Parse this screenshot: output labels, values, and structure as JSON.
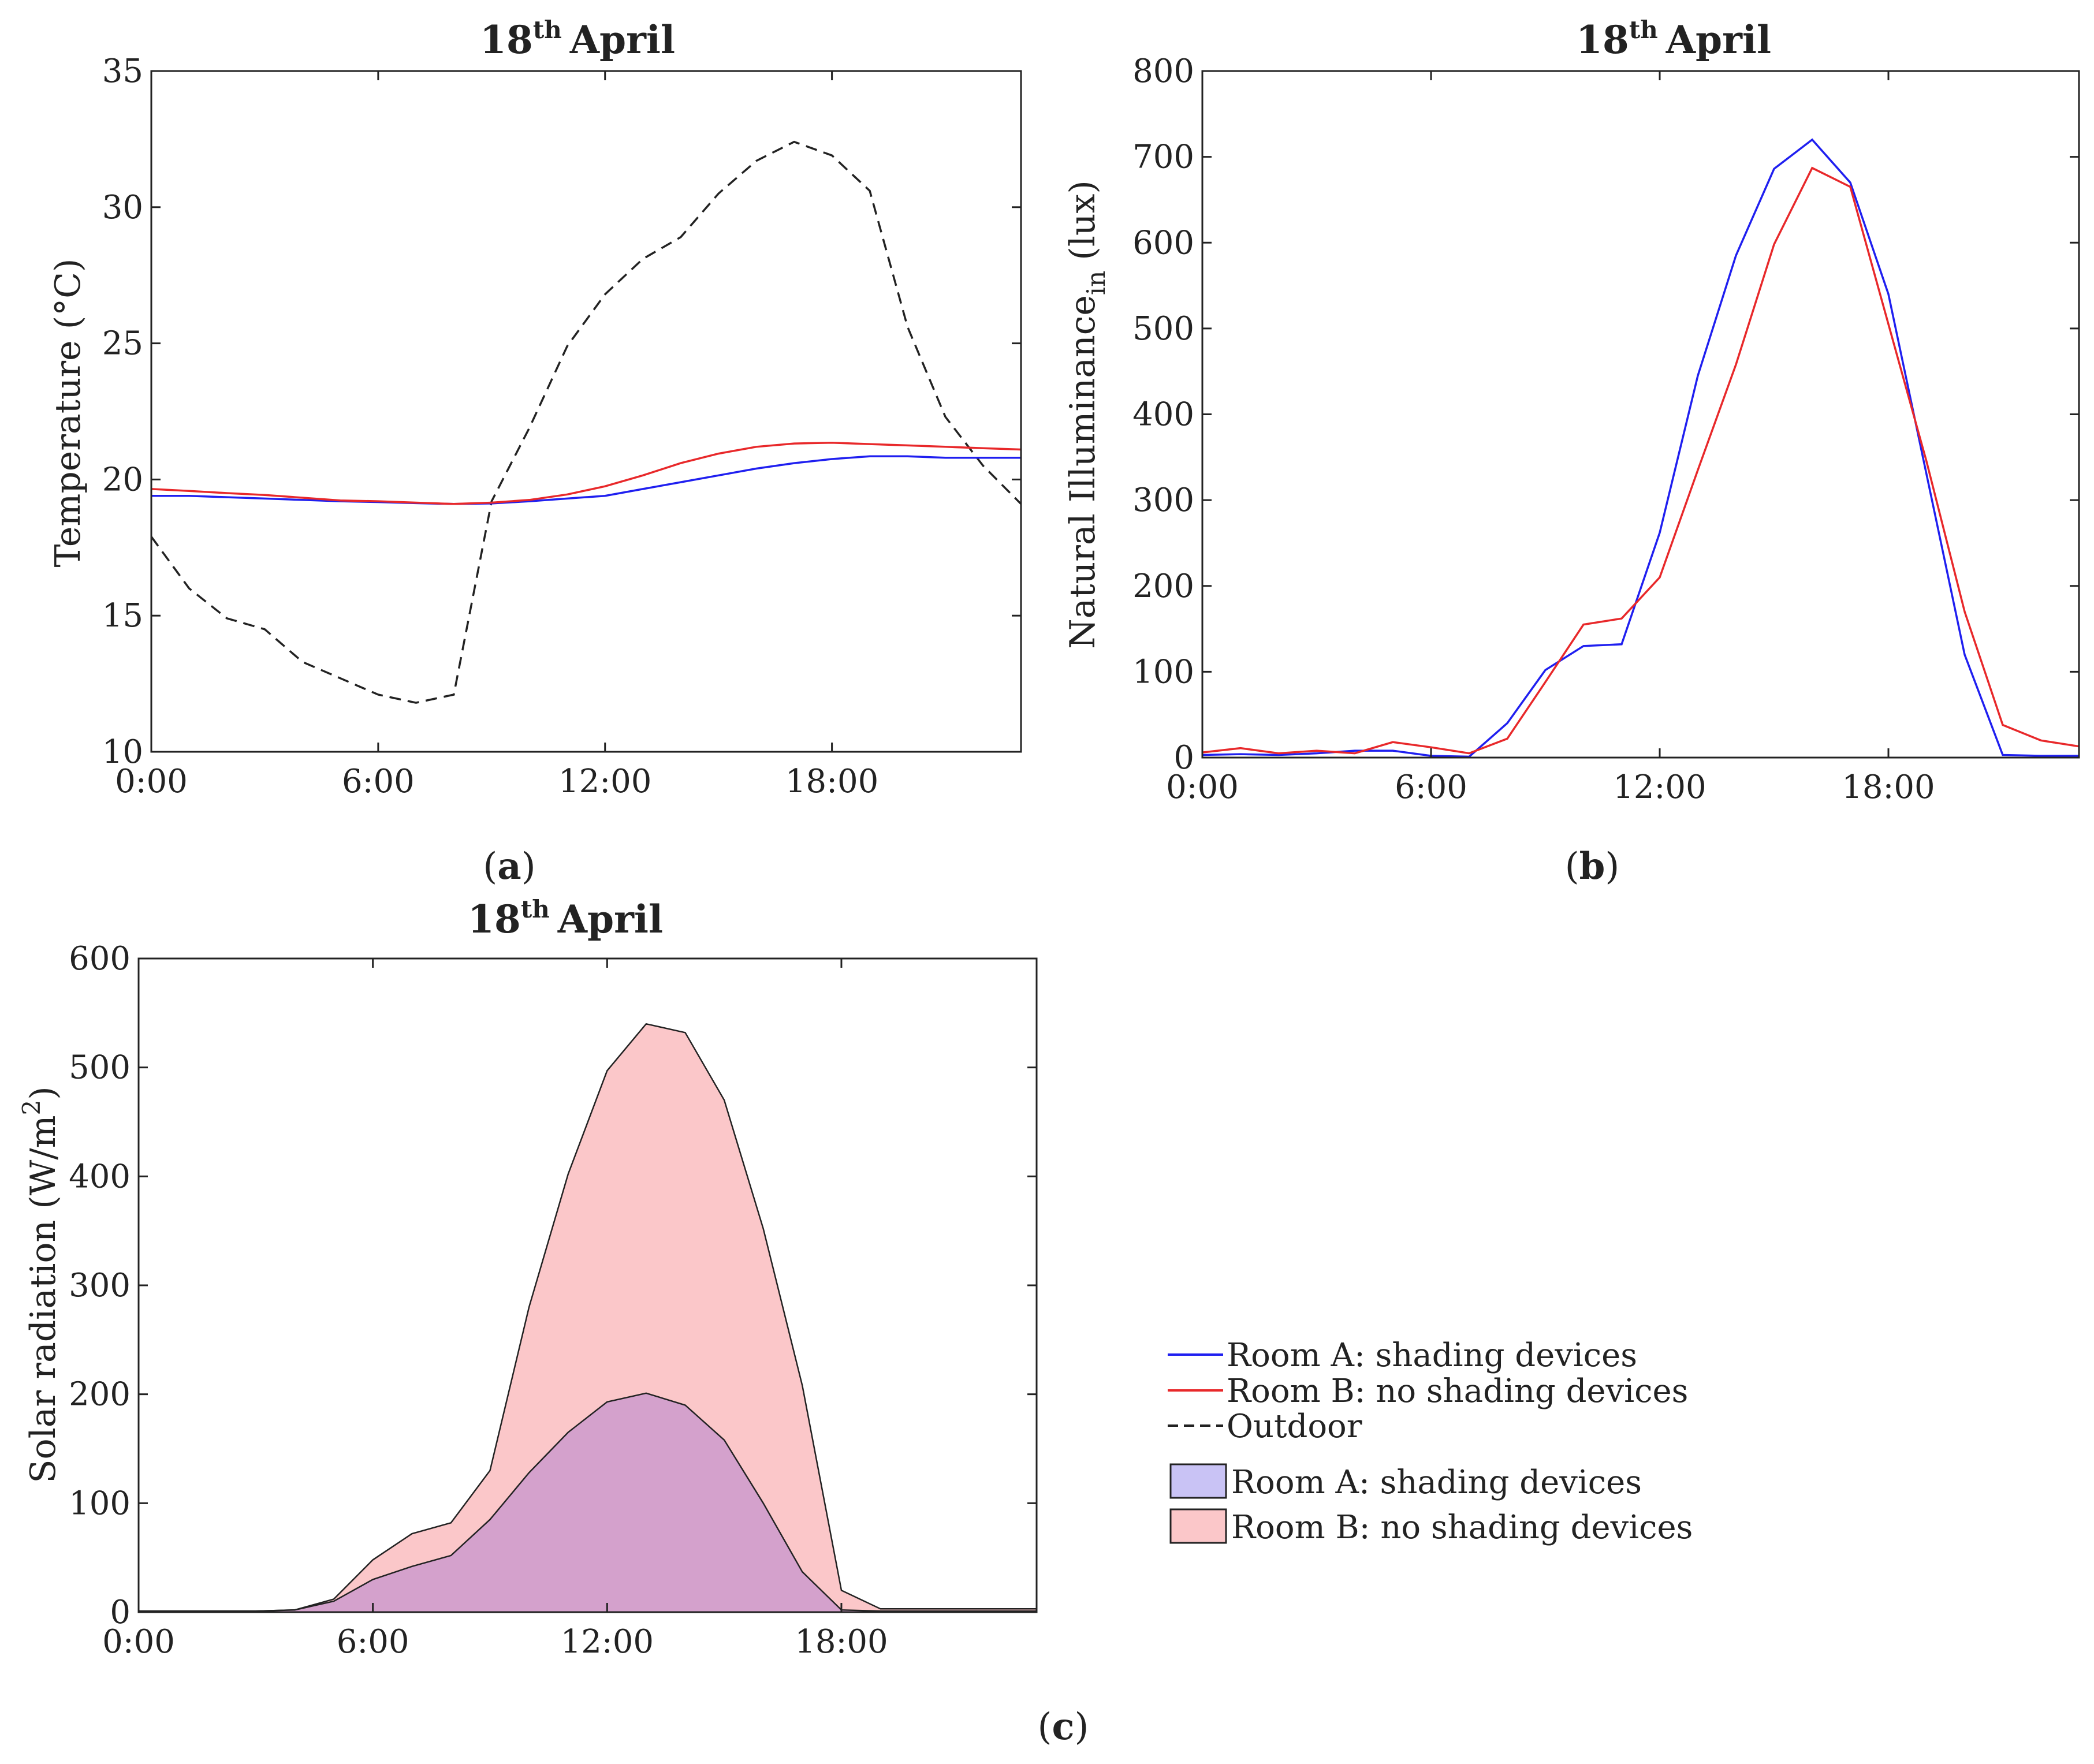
{
  "colors": {
    "room_a_line": "#1f1ff0",
    "room_b_line": "#e8282a",
    "outdoor_line": "#222222",
    "room_a_fill": "#c9c3f5",
    "room_b_fill": "#fbc7c9",
    "overlap_fill": "#d4a1cc",
    "axis": "#222222"
  },
  "legend": {
    "lines": [
      {
        "label": "Room A: shading devices",
        "style": "solid",
        "color": "#1f1ff0"
      },
      {
        "label": "Room B: no shading devices",
        "style": "solid",
        "color": "#e8282a"
      },
      {
        "label": "Outdoor",
        "style": "dashed",
        "color": "#222222"
      }
    ],
    "patches": [
      {
        "label": "Room A: shading devices",
        "color": "#c9c3f5"
      },
      {
        "label": "Room B: no shading devices",
        "color": "#fbc7c9"
      }
    ]
  },
  "chart_data": [
    {
      "id": "a",
      "panel_label": "a",
      "type": "line",
      "title_main": "18",
      "title_sup": "th",
      "title_rest": "April",
      "ylabel": "Temperature (°C)",
      "xlabel": "",
      "xlim": [
        0,
        23
      ],
      "ylim": [
        10,
        35
      ],
      "xticks": [
        0,
        6,
        12,
        18
      ],
      "xtick_labels": [
        "0:00",
        "6:00",
        "12:00",
        "18:00"
      ],
      "yticks": [
        10,
        15,
        20,
        25,
        30,
        35
      ],
      "ytick_labels": [
        "10",
        "15",
        "20",
        "25",
        "30",
        "35"
      ],
      "x": [
        0,
        1,
        2,
        3,
        4,
        5,
        6,
        7,
        8,
        9,
        10,
        11,
        12,
        13,
        14,
        15,
        16,
        17,
        18,
        19,
        20,
        21,
        22,
        23
      ],
      "series": [
        {
          "name": "Outdoor",
          "style": "dashed",
          "color": "#222222",
          "values": [
            17.9,
            16.0,
            14.9,
            14.5,
            13.3,
            12.7,
            12.1,
            11.8,
            12.1,
            19.2,
            21.9,
            24.9,
            26.8,
            28.1,
            28.9,
            30.5,
            31.7,
            32.4,
            31.9,
            30.6,
            25.6,
            22.3,
            20.5,
            19.1
          ]
        },
        {
          "name": "Room A: shading devices",
          "style": "solid",
          "color": "#1f1ff0",
          "values": [
            19.4,
            19.4,
            19.35,
            19.3,
            19.25,
            19.2,
            19.17,
            19.13,
            19.1,
            19.12,
            19.2,
            19.3,
            19.4,
            19.65,
            19.9,
            20.15,
            20.4,
            20.6,
            20.75,
            20.85,
            20.85,
            20.8,
            20.8,
            20.8
          ]
        },
        {
          "name": "Room B: no shading devices",
          "style": "solid",
          "color": "#e8282a",
          "values": [
            19.65,
            19.58,
            19.5,
            19.43,
            19.33,
            19.23,
            19.2,
            19.15,
            19.1,
            19.15,
            19.25,
            19.45,
            19.75,
            20.15,
            20.6,
            20.95,
            21.2,
            21.32,
            21.35,
            21.3,
            21.25,
            21.2,
            21.15,
            21.1
          ]
        }
      ]
    },
    {
      "id": "b",
      "panel_label": "b",
      "type": "line",
      "title_main": "18",
      "title_sup": "th",
      "title_rest": "April",
      "ylabel": "Natural Illuminance",
      "ylabel_sub": "in",
      "ylabel_unit": "(lux)",
      "xlabel": "",
      "xlim": [
        0,
        23
      ],
      "ylim": [
        0,
        800
      ],
      "xticks": [
        0,
        6,
        12,
        18
      ],
      "xtick_labels": [
        "0:00",
        "6:00",
        "12:00",
        "18:00"
      ],
      "yticks": [
        0,
        100,
        200,
        300,
        400,
        500,
        600,
        700,
        800
      ],
      "ytick_labels": [
        "0",
        "100",
        "200",
        "300",
        "400",
        "500",
        "600",
        "700",
        "800"
      ],
      "x": [
        0,
        1,
        2,
        3,
        4,
        5,
        6,
        7,
        8,
        9,
        10,
        11,
        12,
        13,
        14,
        15,
        16,
        17,
        18,
        19,
        20,
        21,
        22,
        23
      ],
      "series": [
        {
          "name": "Room A: shading devices",
          "style": "solid",
          "color": "#1f1ff0",
          "values": [
            3,
            4,
            3,
            5,
            8,
            8,
            2,
            1,
            40,
            102,
            130,
            132,
            262,
            445,
            585,
            686,
            720,
            670,
            540,
            330,
            120,
            3,
            2,
            2
          ]
        },
        {
          "name": "Room B: no shading devices",
          "style": "solid",
          "color": "#e8282a",
          "values": [
            6,
            11,
            5,
            8,
            5,
            18,
            12,
            5,
            22,
            88,
            155,
            162,
            210,
            335,
            458,
            598,
            687,
            665,
            505,
            345,
            170,
            38,
            20,
            13
          ]
        }
      ]
    },
    {
      "id": "c",
      "panel_label": "c",
      "type": "area",
      "title_main": "18",
      "title_sup": "th",
      "title_rest": "April",
      "ylabel": "Solar radiation (W/m",
      "ylabel_sup": "2",
      "ylabel_end": ")",
      "xlabel": "",
      "xlim": [
        0,
        23
      ],
      "ylim": [
        0,
        600
      ],
      "xticks": [
        0,
        6,
        12,
        18
      ],
      "xtick_labels": [
        "0:00",
        "6:00",
        "12:00",
        "18:00"
      ],
      "yticks": [
        0,
        100,
        200,
        300,
        400,
        500,
        600
      ],
      "ytick_labels": [
        "0",
        "100",
        "200",
        "300",
        "400",
        "500",
        "600"
      ],
      "x": [
        0,
        1,
        2,
        3,
        4,
        5,
        6,
        7,
        8,
        9,
        10,
        11,
        12,
        13,
        14,
        15,
        16,
        17,
        18,
        19,
        20,
        21,
        22,
        23
      ],
      "series": [
        {
          "name": "Room B: no shading devices",
          "color": "#fbc7c9",
          "values": [
            1,
            1,
            1,
            1,
            2,
            12,
            48,
            72,
            82,
            130,
            280,
            402,
            497,
            540,
            532,
            470,
            352,
            208,
            20,
            3,
            3,
            3,
            3,
            3
          ]
        },
        {
          "name": "Room A: shading devices",
          "color": "#c9c3f5",
          "values": [
            1,
            1,
            1,
            1,
            2,
            10,
            30,
            42,
            52,
            85,
            128,
            165,
            193,
            201,
            190,
            158,
            100,
            37,
            2,
            1,
            1,
            1,
            1,
            1
          ]
        }
      ]
    }
  ]
}
